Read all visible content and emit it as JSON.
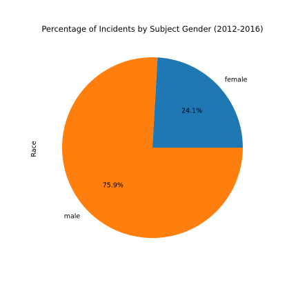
{
  "chart_data": {
    "type": "pie",
    "title": "Percentage of Incidents by Subject Gender (2012-2016)",
    "ylabel": "Race",
    "categories": [
      "female",
      "male"
    ],
    "values": [
      24.1,
      75.9
    ],
    "value_labels": [
      "24.1%",
      "75.9%"
    ],
    "colors": [
      "#1f77b4",
      "#ff7f0e"
    ],
    "start_angle_deg": 0,
    "direction": "counterclockwise"
  }
}
